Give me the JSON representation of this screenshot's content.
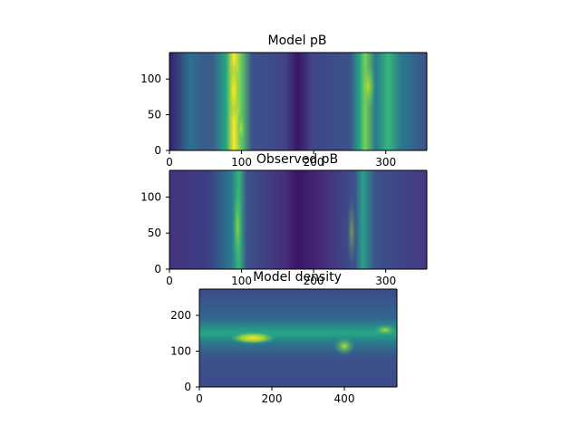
{
  "chart_data": [
    {
      "type": "heatmap",
      "title": "Model pB",
      "colormap": "viridis",
      "xlim": [
        0,
        357
      ],
      "ylim": [
        0,
        137
      ],
      "xticks": [
        0,
        100,
        200,
        300
      ],
      "yticks": [
        0,
        50,
        100
      ],
      "features": [
        {
          "x": 90,
          "y": [
            0,
            137
          ],
          "intensity": 0.95,
          "kind": "bright band"
        },
        {
          "x": 270,
          "y": [
            0,
            137
          ],
          "intensity": 0.6,
          "kind": "band"
        },
        {
          "x": 300,
          "y": [
            60,
            137
          ],
          "intensity": 0.55,
          "kind": "band"
        }
      ]
    },
    {
      "type": "heatmap",
      "title": "Observed pB",
      "colormap": "viridis",
      "xlim": [
        0,
        357
      ],
      "ylim": [
        0,
        137
      ],
      "xticks": [
        0,
        100,
        200,
        300
      ],
      "yticks": [
        0,
        50,
        100
      ],
      "features": [
        {
          "x": 95,
          "y": [
            0,
            137
          ],
          "intensity": 0.6,
          "kind": "band"
        },
        {
          "x": 265,
          "y": [
            0,
            137
          ],
          "intensity": 0.45,
          "kind": "band"
        }
      ]
    },
    {
      "type": "heatmap",
      "title": "Model density",
      "colormap": "viridis",
      "xlim": [
        0,
        545
      ],
      "ylim": [
        0,
        275
      ],
      "xticks": [
        0,
        200,
        400
      ],
      "yticks": [
        0,
        100,
        200
      ],
      "features": [
        {
          "x": 150,
          "y": 135,
          "intensity": 1.0,
          "kind": "peak"
        },
        {
          "x": 400,
          "y": 115,
          "intensity": 0.8,
          "kind": "peak"
        },
        {
          "x": 520,
          "y": 160,
          "intensity": 0.7,
          "kind": "peak"
        }
      ]
    }
  ]
}
